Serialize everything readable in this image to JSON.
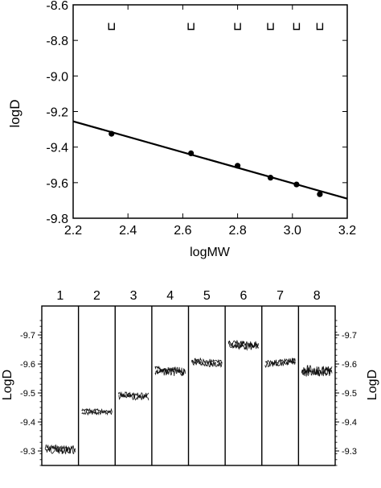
{
  "chart_data": [
    {
      "type": "scatter",
      "title": "",
      "xlabel": "logMW",
      "ylabel": "logD",
      "xlim": [
        2.2,
        3.2
      ],
      "ylim": [
        -9.8,
        -8.6
      ],
      "y_reversed": true,
      "x_ticks": [
        "2.2",
        "2.4",
        "2.6",
        "2.8",
        "3.0",
        "3.2"
      ],
      "y_ticks": [
        "-8.6",
        "-8.8",
        "-9.0",
        "-9.2",
        "-9.4",
        "-9.6",
        "-9.8"
      ],
      "grid": false,
      "series": [
        {
          "points": [
            {
              "x": 2.34,
              "y": -9.325
            },
            {
              "x": 2.63,
              "y": -9.435
            },
            {
              "x": 2.8,
              "y": -9.505
            },
            {
              "x": 2.92,
              "y": -9.572
            },
            {
              "x": 3.015,
              "y": -9.61
            },
            {
              "x": 3.1,
              "y": -9.665
            }
          ]
        }
      ],
      "fit_line": {
        "x": [
          2.2,
          3.2
        ],
        "y": [
          -9.255,
          -9.69
        ]
      },
      "band_markers": [
        {
          "x": 2.34,
          "y": -8.72
        },
        {
          "x": 2.63,
          "y": -8.72
        },
        {
          "x": 2.8,
          "y": -8.72
        },
        {
          "x": 2.92,
          "y": -8.72
        },
        {
          "x": 3.015,
          "y": -8.72
        },
        {
          "x": 3.1,
          "y": -8.72
        }
      ]
    },
    {
      "type": "line",
      "title": "",
      "ylabel_left": "LogD",
      "ylabel_right": "LogD",
      "ylim": [
        -9.25,
        -9.8
      ],
      "y_ticks": [
        "-9.7",
        "-9.6",
        "-9.5",
        "-9.4",
        "-9.3"
      ],
      "lanes": [
        "1",
        "2",
        "3",
        "4",
        "5",
        "6",
        "7",
        "8"
      ],
      "lane_means": [
        -9.305,
        -9.435,
        -9.49,
        -9.575,
        -9.605,
        -9.665,
        -9.605,
        -9.575
      ],
      "lane_trends": [
        0.005,
        0.0,
        0.005,
        0.005,
        0.01,
        0.005,
        -0.01,
        0.005
      ],
      "lane_noise": [
        0.012,
        0.006,
        0.01,
        0.012,
        0.01,
        0.012,
        0.008,
        0.015
      ]
    }
  ]
}
